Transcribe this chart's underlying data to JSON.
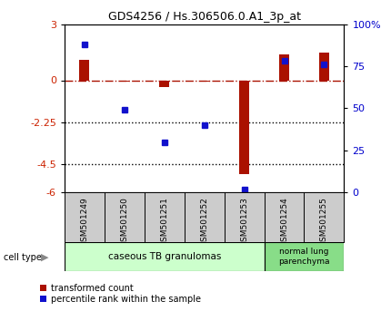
{
  "title": "GDS4256 / Hs.306506.0.A1_3p_at",
  "samples": [
    "GSM501249",
    "GSM501250",
    "GSM501251",
    "GSM501252",
    "GSM501253",
    "GSM501254",
    "GSM501255"
  ],
  "red_values": [
    1.1,
    -0.05,
    -0.35,
    -0.05,
    -5.0,
    1.4,
    1.5
  ],
  "blue_values_pct": [
    88,
    49,
    30,
    40,
    2,
    78,
    76
  ],
  "ylim_left": [
    -6,
    3
  ],
  "yticks_left": [
    -6,
    -4.5,
    -2.25,
    0,
    3
  ],
  "ytick_labels_left": [
    "-6",
    "-4.5",
    "-2.25",
    "0",
    "3"
  ],
  "ylim_right": [
    0,
    100
  ],
  "yticks_right": [
    0,
    25,
    50,
    75,
    100
  ],
  "ytick_labels_right": [
    "0",
    "25",
    "50",
    "75",
    "100%"
  ],
  "hline_y": 0,
  "dotted_lines": [
    -2.25,
    -4.5
  ],
  "group1_samples": [
    0,
    1,
    2,
    3,
    4
  ],
  "group2_samples": [
    5,
    6
  ],
  "group1_label": "caseous TB granulomas",
  "group2_label": "normal lung\nparenchyma",
  "cell_type_label": "cell type",
  "legend_red": "transformed count",
  "legend_blue": "percentile rank within the sample",
  "bar_width": 0.25,
  "red_color": "#aa1100",
  "blue_color": "#1111cc",
  "group1_color": "#ccffcc",
  "group2_color": "#88dd88",
  "tick_label_color_left": "#cc2200",
  "tick_label_color_right": "#0000cc",
  "sample_box_color": "#cccccc"
}
